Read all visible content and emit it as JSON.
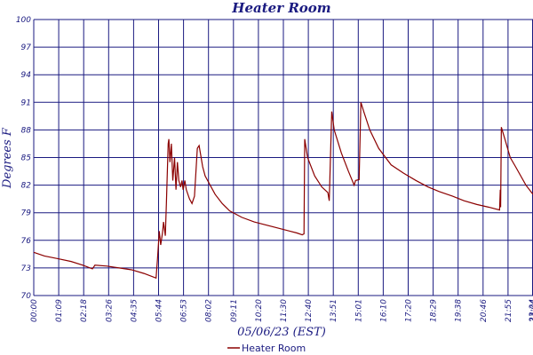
{
  "chart_data": {
    "type": "line",
    "title": "Heater Room",
    "xlabel": "05/06/23 (EST)",
    "ylabel": "Degrees F",
    "colors": {
      "grid": "#1a1a80",
      "series": "#8b0000",
      "text": "#1a1a80"
    },
    "grid": true,
    "legend_position": "bottom-center",
    "y_tick_labels": [
      "70",
      "73",
      "76",
      "79",
      "82",
      "85",
      "88",
      "91",
      "94",
      "97",
      "100"
    ],
    "x_tick_labels": [
      "00:00",
      "01:09",
      "02:18",
      "03:26",
      "04:35",
      "05:44",
      "06:53",
      "08:02",
      "09:11",
      "10:20",
      "11:30",
      "12:40",
      "13:51",
      "15:01",
      "16:10",
      "17:20",
      "18:29",
      "19:38",
      "20:46",
      "21:55",
      "23:04",
      "23:24"
    ],
    "series": [
      {
        "name": "Heater Room",
        "points": [
          [
            "00:00",
            74.7
          ],
          [
            "00:30",
            74.3
          ],
          [
            "01:09",
            74.0
          ],
          [
            "01:45",
            73.7
          ],
          [
            "02:18",
            73.3
          ],
          [
            "02:45",
            72.9
          ],
          [
            "02:52",
            73.3
          ],
          [
            "03:26",
            73.2
          ],
          [
            "04:00",
            73.0
          ],
          [
            "04:35",
            72.8
          ],
          [
            "05:10",
            72.4
          ],
          [
            "05:44",
            71.9
          ],
          [
            "05:48",
            74.0
          ],
          [
            "05:53",
            77.0
          ],
          [
            "05:57",
            75.5
          ],
          [
            "06:02",
            76.8
          ],
          [
            "06:05",
            78.0
          ],
          [
            "06:10",
            76.5
          ],
          [
            "06:13",
            80.0
          ],
          [
            "06:18",
            86.5
          ],
          [
            "06:20",
            87.0
          ],
          [
            "06:23",
            84.5
          ],
          [
            "06:27",
            86.5
          ],
          [
            "06:31",
            82.5
          ],
          [
            "06:36",
            85.0
          ],
          [
            "06:40",
            81.5
          ],
          [
            "06:44",
            84.5
          ],
          [
            "06:48",
            82.5
          ],
          [
            "06:53",
            81.8
          ],
          [
            "06:57",
            82.5
          ],
          [
            "07:00",
            81.5
          ],
          [
            "07:05",
            82.5
          ],
          [
            "07:09",
            81.5
          ],
          [
            "07:18",
            80.5
          ],
          [
            "07:25",
            80.0
          ],
          [
            "07:32",
            80.8
          ],
          [
            "07:40",
            86.0
          ],
          [
            "07:45",
            86.3
          ],
          [
            "07:55",
            84.0
          ],
          [
            "08:02",
            83.0
          ],
          [
            "08:30",
            81.0
          ],
          [
            "08:50",
            80.0
          ],
          [
            "09:11",
            79.2
          ],
          [
            "09:45",
            78.5
          ],
          [
            "10:20",
            78.0
          ],
          [
            "10:50",
            77.7
          ],
          [
            "11:30",
            77.3
          ],
          [
            "12:00",
            77.0
          ],
          [
            "12:20",
            76.8
          ],
          [
            "12:35",
            76.6
          ],
          [
            "12:40",
            76.7
          ],
          [
            "12:42",
            87.0
          ],
          [
            "12:50",
            85.0
          ],
          [
            "13:10",
            83.0
          ],
          [
            "13:30",
            81.8
          ],
          [
            "13:47",
            81.2
          ],
          [
            "13:51",
            80.3
          ],
          [
            "13:58",
            90.0
          ],
          [
            "14:05",
            88.0
          ],
          [
            "14:25",
            85.5
          ],
          [
            "14:45",
            83.5
          ],
          [
            "15:01",
            82.0
          ],
          [
            "15:05",
            82.5
          ],
          [
            "15:15",
            82.6
          ],
          [
            "15:20",
            91.0
          ],
          [
            "15:28",
            90.0
          ],
          [
            "15:45",
            88.0
          ],
          [
            "16:10",
            86.0
          ],
          [
            "16:45",
            84.2
          ],
          [
            "17:20",
            83.3
          ],
          [
            "17:55",
            82.5
          ],
          [
            "18:29",
            81.8
          ],
          [
            "19:00",
            81.3
          ],
          [
            "19:38",
            80.8
          ],
          [
            "20:10",
            80.3
          ],
          [
            "20:46",
            79.9
          ],
          [
            "21:20",
            79.6
          ],
          [
            "21:50",
            79.3
          ],
          [
            "21:52",
            81.5
          ],
          [
            "21:53",
            79.6
          ],
          [
            "21:55",
            88.3
          ],
          [
            "22:05",
            87.0
          ],
          [
            "22:20",
            85.0
          ],
          [
            "22:35",
            84.0
          ],
          [
            "23:04",
            82.0
          ],
          [
            "23:24",
            81.0
          ]
        ]
      }
    ]
  }
}
